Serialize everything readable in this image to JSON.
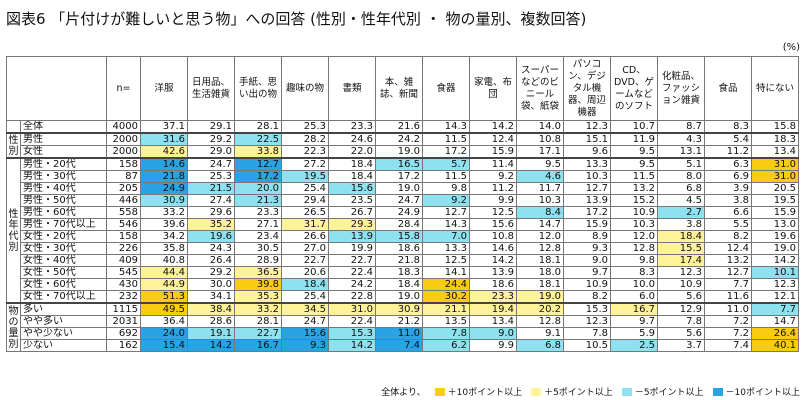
{
  "title": "図表6 「片付けが難しいと思う物」への回答 (性別・性年代別 ・ 物の量別、複数回答)",
  "unit": "(%)",
  "colors": {
    "plus10": "#f8cc10",
    "plus5": "#fff39a",
    "minus5": "#8ee2ef",
    "minus10": "#2aa3e5"
  },
  "table": {
    "n_label": "n=",
    "columns": [
      "洋服",
      "日用品、生活雑貨",
      "手紙、思い出の物",
      "趣味の物",
      "書類",
      "本、雑誌、新聞",
      "食器",
      "家電、布団",
      "スーパーなどのビニール袋、紙袋",
      "パソコン、デジタル機器、周辺機器",
      "CD、DVD、ゲームなどのソフト",
      "化粧品、ファッション雑貨",
      "食品",
      "特にない"
    ],
    "groups": [
      {
        "label": "",
        "start": 0,
        "span": 1
      },
      {
        "label": "性別",
        "start": 1,
        "span": 2
      },
      {
        "label": "性年代別",
        "start": 3,
        "span": 12
      },
      {
        "label": "物の量別",
        "start": 15,
        "span": 4
      }
    ],
    "rows": [
      {
        "label": "全体",
        "n": "4000",
        "values": [
          "37.1",
          "29.1",
          "28.1",
          "25.3",
          "23.3",
          "21.6",
          "14.3",
          "14.2",
          "14.0",
          "12.3",
          "10.7",
          "8.7",
          "8.3",
          "15.8"
        ],
        "marks": [
          0,
          0,
          0,
          0,
          0,
          0,
          0,
          0,
          0,
          0,
          0,
          0,
          0,
          0
        ]
      },
      {
        "label": "男性",
        "n": "2000",
        "values": [
          "31.6",
          "29.2",
          "22.5",
          "28.2",
          "24.6",
          "24.2",
          "11.5",
          "12.4",
          "10.8",
          "15.1",
          "11.9",
          "4.3",
          "5.4",
          "18.3"
        ],
        "marks": [
          3,
          0,
          3,
          0,
          0,
          0,
          0,
          0,
          0,
          0,
          0,
          0,
          0,
          0
        ]
      },
      {
        "label": "女性",
        "n": "2000",
        "values": [
          "42.6",
          "29.0",
          "33.8",
          "22.3",
          "22.0",
          "19.0",
          "17.2",
          "15.9",
          "17.1",
          "9.6",
          "9.5",
          "13.1",
          "11.2",
          "13.4"
        ],
        "marks": [
          2,
          0,
          2,
          0,
          0,
          0,
          0,
          0,
          0,
          0,
          0,
          0,
          0,
          0
        ]
      },
      {
        "label": "男性・20代",
        "n": "158",
        "values": [
          "14.6",
          "24.7",
          "12.7",
          "27.2",
          "18.4",
          "16.5",
          "5.7",
          "11.4",
          "9.5",
          "13.3",
          "9.5",
          "5.1",
          "6.3",
          "31.0"
        ],
        "marks": [
          4,
          0,
          4,
          0,
          0,
          3,
          3,
          0,
          0,
          0,
          0,
          0,
          0,
          1
        ]
      },
      {
        "label": "男性・30代",
        "n": "87",
        "values": [
          "21.8",
          "25.3",
          "17.2",
          "19.5",
          "18.4",
          "17.2",
          "11.5",
          "9.2",
          "4.6",
          "10.3",
          "11.5",
          "8.0",
          "6.9",
          "31.0"
        ],
        "marks": [
          4,
          0,
          4,
          3,
          0,
          0,
          0,
          0,
          3,
          0,
          0,
          0,
          0,
          1
        ]
      },
      {
        "label": "男性・40代",
        "n": "205",
        "values": [
          "24.9",
          "21.5",
          "20.0",
          "25.4",
          "15.6",
          "19.0",
          "9.8",
          "11.2",
          "11.7",
          "12.7",
          "13.2",
          "6.8",
          "3.9",
          "20.5"
        ],
        "marks": [
          4,
          3,
          3,
          0,
          3,
          0,
          0,
          0,
          0,
          0,
          0,
          0,
          0,
          0
        ]
      },
      {
        "label": "男性・50代",
        "n": "446",
        "values": [
          "30.9",
          "27.4",
          "21.3",
          "29.4",
          "23.5",
          "24.7",
          "9.2",
          "9.9",
          "10.3",
          "13.9",
          "15.2",
          "4.5",
          "3.8",
          "19.5"
        ],
        "marks": [
          3,
          0,
          3,
          0,
          0,
          0,
          3,
          0,
          0,
          0,
          0,
          0,
          0,
          0
        ]
      },
      {
        "label": "男性・60代",
        "n": "558",
        "values": [
          "33.2",
          "29.6",
          "23.3",
          "26.5",
          "26.7",
          "24.9",
          "12.7",
          "12.5",
          "8.4",
          "17.2",
          "10.9",
          "2.7",
          "6.6",
          "15.9"
        ],
        "marks": [
          0,
          0,
          0,
          0,
          0,
          0,
          0,
          0,
          3,
          0,
          0,
          3,
          0,
          0
        ]
      },
      {
        "label": "男性・70代以上",
        "n": "546",
        "values": [
          "39.6",
          "35.2",
          "27.1",
          "31.7",
          "29.3",
          "28.4",
          "14.3",
          "15.6",
          "14.7",
          "15.9",
          "10.3",
          "3.8",
          "5.5",
          "13.0"
        ],
        "marks": [
          0,
          2,
          0,
          2,
          2,
          0,
          0,
          0,
          0,
          0,
          0,
          0,
          0,
          0
        ]
      },
      {
        "label": "女性・20代",
        "n": "158",
        "values": [
          "34.2",
          "19.6",
          "23.4",
          "26.6",
          "13.9",
          "15.8",
          "7.0",
          "10.8",
          "12.0",
          "8.9",
          "12.0",
          "18.4",
          "8.2",
          "19.6"
        ],
        "marks": [
          0,
          3,
          0,
          0,
          3,
          3,
          3,
          0,
          0,
          0,
          0,
          2,
          0,
          0
        ]
      },
      {
        "label": "女性・30代",
        "n": "226",
        "values": [
          "35.8",
          "24.3",
          "30.5",
          "27.0",
          "19.9",
          "18.6",
          "13.3",
          "14.6",
          "12.8",
          "9.3",
          "12.8",
          "15.5",
          "12.4",
          "19.0"
        ],
        "marks": [
          0,
          0,
          0,
          0,
          0,
          0,
          0,
          0,
          0,
          0,
          0,
          2,
          0,
          0
        ]
      },
      {
        "label": "女性・40代",
        "n": "409",
        "values": [
          "40.8",
          "26.4",
          "28.9",
          "22.7",
          "22.7",
          "21.8",
          "12.5",
          "14.2",
          "18.1",
          "9.0",
          "9.8",
          "17.4",
          "13.2",
          "14.2"
        ],
        "marks": [
          0,
          0,
          0,
          0,
          0,
          0,
          0,
          0,
          0,
          0,
          0,
          2,
          0,
          0
        ]
      },
      {
        "label": "女性・50代",
        "n": "545",
        "values": [
          "44.4",
          "29.2",
          "36.5",
          "20.6",
          "22.4",
          "18.3",
          "14.1",
          "13.9",
          "18.0",
          "9.7",
          "8.3",
          "12.3",
          "12.7",
          "10.1"
        ],
        "marks": [
          2,
          0,
          2,
          0,
          0,
          0,
          0,
          0,
          0,
          0,
          0,
          0,
          0,
          3
        ]
      },
      {
        "label": "女性・60代",
        "n": "430",
        "values": [
          "44.9",
          "30.0",
          "39.8",
          "18.4",
          "24.2",
          "18.4",
          "24.4",
          "18.6",
          "18.1",
          "10.9",
          "10.0",
          "10.9",
          "7.7",
          "12.3"
        ],
        "marks": [
          2,
          0,
          1,
          3,
          0,
          0,
          1,
          0,
          0,
          0,
          0,
          0,
          0,
          0
        ]
      },
      {
        "label": "女性・70代以上",
        "n": "232",
        "values": [
          "51.3",
          "34.1",
          "35.3",
          "25.4",
          "22.8",
          "19.0",
          "30.2",
          "23.3",
          "19.0",
          "8.2",
          "6.0",
          "5.6",
          "11.6",
          "12.1"
        ],
        "marks": [
          1,
          0,
          2,
          0,
          0,
          0,
          1,
          2,
          2,
          0,
          0,
          0,
          0,
          0
        ]
      },
      {
        "label": "多い",
        "n": "1115",
        "values": [
          "49.5",
          "38.4",
          "33.2",
          "34.5",
          "31.0",
          "30.9",
          "21.1",
          "19.4",
          "20.2",
          "15.3",
          "16.7",
          "12.9",
          "11.0",
          "7.7"
        ],
        "marks": [
          1,
          2,
          2,
          2,
          2,
          2,
          2,
          2,
          2,
          0,
          2,
          0,
          0,
          3
        ]
      },
      {
        "label": "やや多い",
        "n": "2031",
        "values": [
          "36.4",
          "28.6",
          "28.1",
          "24.7",
          "22.4",
          "21.2",
          "13.5",
          "13.4",
          "12.8",
          "12.3",
          "9.7",
          "7.8",
          "7.2",
          "14.7"
        ],
        "marks": [
          0,
          0,
          0,
          0,
          0,
          0,
          0,
          0,
          0,
          0,
          0,
          0,
          0,
          0
        ]
      },
      {
        "label": "やや少ない",
        "n": "692",
        "values": [
          "24.0",
          "19.1",
          "22.7",
          "15.6",
          "15.3",
          "11.0",
          "7.8",
          "9.0",
          "9.1",
          "7.8",
          "5.9",
          "5.6",
          "7.2",
          "26.4"
        ],
        "marks": [
          4,
          3,
          3,
          4,
          3,
          4,
          3,
          3,
          0,
          0,
          0,
          0,
          0,
          1
        ]
      },
      {
        "label": "少ない",
        "n": "162",
        "values": [
          "15.4",
          "14.2",
          "16.7",
          "9.3",
          "14.2",
          "7.4",
          "6.2",
          "9.9",
          "6.8",
          "10.5",
          "2.5",
          "3.7",
          "7.4",
          "40.1"
        ],
        "marks": [
          4,
          4,
          4,
          4,
          3,
          4,
          3,
          0,
          3,
          0,
          3,
          0,
          0,
          1
        ]
      }
    ]
  },
  "legend": {
    "prefix": "全体より、",
    "items": [
      {
        "mark": 1,
        "label": "＋10ポイント以上"
      },
      {
        "mark": 2,
        "label": "＋5ポイント以上"
      },
      {
        "mark": 3,
        "label": "－5ポイント以上"
      },
      {
        "mark": 4,
        "label": "－10ポイント以上"
      }
    ]
  }
}
